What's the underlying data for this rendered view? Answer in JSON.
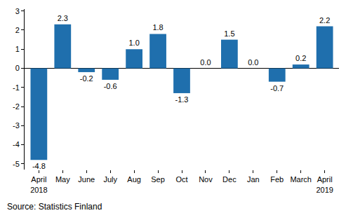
{
  "chart_data": {
    "type": "bar",
    "categories": [
      "April\n2018",
      "May",
      "June",
      "July",
      "Aug",
      "Sep",
      "Oct",
      "Nov",
      "Dec",
      "Jan",
      "Feb",
      "March",
      "April\n2019"
    ],
    "values": [
      -4.8,
      2.3,
      -0.2,
      -0.6,
      1.0,
      1.8,
      -1.3,
      0.0,
      1.5,
      0.0,
      -0.7,
      0.2,
      2.2
    ],
    "value_labels": [
      "-4.8",
      "2.3",
      "-0.2",
      "-0.6",
      "1.0",
      "1.8",
      "-1.3",
      "0.0",
      "1.5",
      "0.0",
      "-0.7",
      "0.2",
      "2.2"
    ],
    "data_labels": true,
    "color": "#1f6fad",
    "ylim": [
      -5.3,
      3.1
    ],
    "yticks": [
      -5,
      -4,
      -3,
      -2,
      -1,
      0,
      1,
      2,
      3
    ],
    "grid": false,
    "source": "Source: Statistics Finland"
  }
}
